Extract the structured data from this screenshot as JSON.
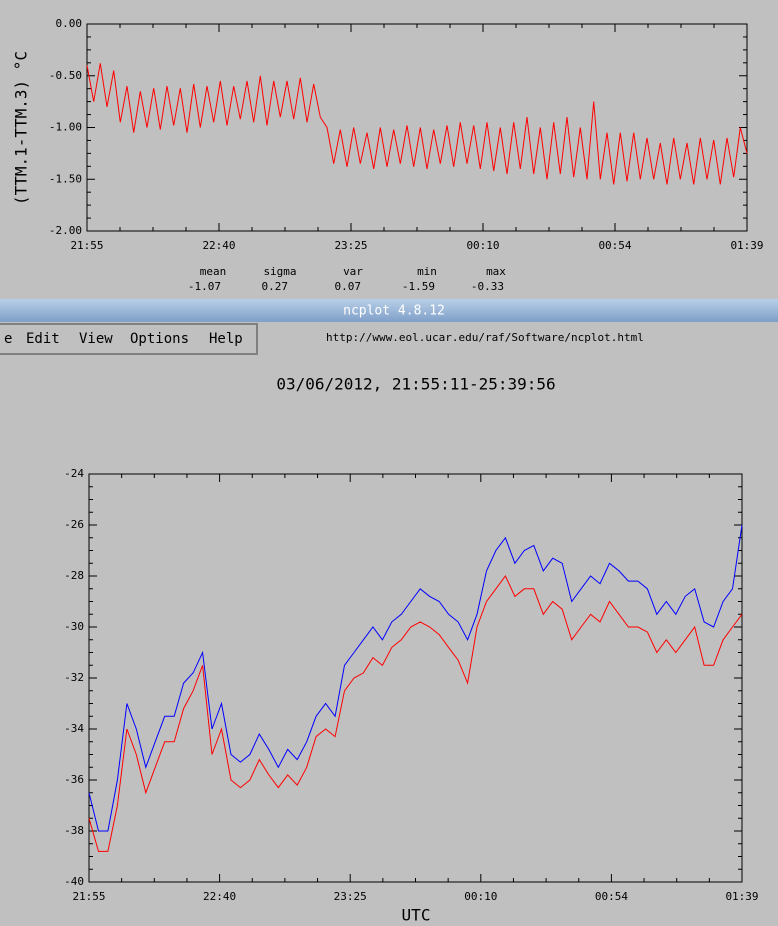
{
  "window_title": "ncplot 4.8.12",
  "menu": [
    "e",
    "Edit",
    "View",
    "Options",
    "Help"
  ],
  "url": "http://www.eol.ucar.edu/raf/Software/ncplot.html",
  "stats": {
    "headers": [
      "mean",
      "sigma",
      "var",
      "min",
      "max"
    ],
    "values": [
      -1.07,
      0.27,
      0.07,
      -1.59,
      -0.33
    ]
  },
  "chart_data": [
    {
      "type": "line",
      "ylabel": "(TTM.1-TTM.3) °C",
      "ylim": [
        -2,
        0
      ],
      "yticks": [
        {
          "value": -2,
          "label": "-2.00"
        },
        {
          "value": -1.5,
          "label": "-1.50"
        },
        {
          "value": -1,
          "label": "-1.00"
        },
        {
          "value": -0.5,
          "label": "-0.50"
        },
        {
          "value": 0,
          "label": "0.00"
        }
      ],
      "xtick_labels": [
        "21:55",
        "22:40",
        "23:25",
        "00:10",
        "00:54",
        "01:39"
      ],
      "series": [
        {
          "color": "#ff0000",
          "values": [
            -0.4,
            -0.75,
            -0.38,
            -0.8,
            -0.45,
            -0.95,
            -0.6,
            -1.05,
            -0.65,
            -1.0,
            -0.62,
            -1.02,
            -0.6,
            -0.98,
            -0.62,
            -1.05,
            -0.58,
            -1.0,
            -0.6,
            -0.95,
            -0.55,
            -0.98,
            -0.6,
            -0.92,
            -0.55,
            -0.95,
            -0.5,
            -0.98,
            -0.55,
            -0.9,
            -0.55,
            -0.92,
            -0.52,
            -0.95,
            -0.58,
            -0.9,
            -1.0,
            -1.35,
            -1.02,
            -1.38,
            -1.0,
            -1.35,
            -1.05,
            -1.4,
            -1.0,
            -1.38,
            -1.02,
            -1.35,
            -0.98,
            -1.38,
            -1.0,
            -1.4,
            -1.02,
            -1.35,
            -0.98,
            -1.38,
            -0.95,
            -1.35,
            -0.98,
            -1.4,
            -0.95,
            -1.42,
            -1.0,
            -1.45,
            -0.95,
            -1.4,
            -0.9,
            -1.45,
            -1.0,
            -1.5,
            -0.95,
            -1.45,
            -0.9,
            -1.48,
            -1.0,
            -1.5,
            -0.75,
            -1.5,
            -1.05,
            -1.55,
            -1.05,
            -1.52,
            -1.05,
            -1.5,
            -1.1,
            -1.5,
            -1.15,
            -1.55,
            -1.1,
            -1.5,
            -1.15,
            -1.55,
            -1.1,
            -1.5,
            -1.12,
            -1.55,
            -1.1,
            -1.48,
            -1.0,
            -1.25
          ]
        }
      ]
    },
    {
      "type": "line",
      "title": "03/06/2012, 21:55:11-25:39:56",
      "xlabel": "UTC",
      "ylim": [
        -40,
        -24
      ],
      "yticks": [
        -40,
        -38,
        -36,
        -34,
        -32,
        -30,
        -28,
        -26,
        -24
      ],
      "xtick_labels": [
        "21:55",
        "22:40",
        "23:25",
        "00:10",
        "00:54",
        "01:39"
      ],
      "series": [
        {
          "color": "#0000ff",
          "values": [
            -36.5,
            -38,
            -38,
            -36,
            -33,
            -34,
            -35.5,
            -34.5,
            -33.5,
            -33.5,
            -32.2,
            -31.8,
            -31,
            -34,
            -33,
            -35,
            -35.3,
            -35,
            -34.2,
            -34.8,
            -35.5,
            -34.8,
            -35.2,
            -34.5,
            -33.5,
            -33,
            -33.5,
            -31.5,
            -31,
            -30.5,
            -30,
            -30.5,
            -29.8,
            -29.5,
            -29,
            -28.5,
            -28.8,
            -29,
            -29.5,
            -29.8,
            -30.5,
            -29.5,
            -27.8,
            -27,
            -26.5,
            -27.5,
            -27,
            -26.8,
            -27.8,
            -27.3,
            -27.5,
            -29,
            -28.5,
            -28,
            -28.3,
            -27.5,
            -27.8,
            -28.2,
            -28.2,
            -28.5,
            -29.5,
            -29,
            -29.5,
            -28.8,
            -28.5,
            -29.8,
            -30,
            -29,
            -28.5,
            -26
          ]
        },
        {
          "color": "#ff0000",
          "values": [
            -37.5,
            -38.8,
            -38.8,
            -37,
            -34,
            -35,
            -36.5,
            -35.5,
            -34.5,
            -34.5,
            -33.2,
            -32.5,
            -31.5,
            -35,
            -34,
            -36,
            -36.3,
            -36,
            -35.2,
            -35.8,
            -36.3,
            -35.8,
            -36.2,
            -35.5,
            -34.3,
            -34,
            -34.3,
            -32.5,
            -32,
            -31.8,
            -31.2,
            -31.5,
            -30.8,
            -30.5,
            -30,
            -29.8,
            -30,
            -30.3,
            -30.8,
            -31.3,
            -32.2,
            -30,
            -29,
            -28.5,
            -28,
            -28.8,
            -28.5,
            -28.5,
            -29.5,
            -29,
            -29.3,
            -30.5,
            -30,
            -29.5,
            -29.8,
            -29,
            -29.5,
            -30,
            -30,
            -30.2,
            -31,
            -30.5,
            -31,
            -30.5,
            -30,
            -31.5,
            -31.5,
            -30.5,
            -30,
            -29.5
          ]
        }
      ]
    }
  ]
}
